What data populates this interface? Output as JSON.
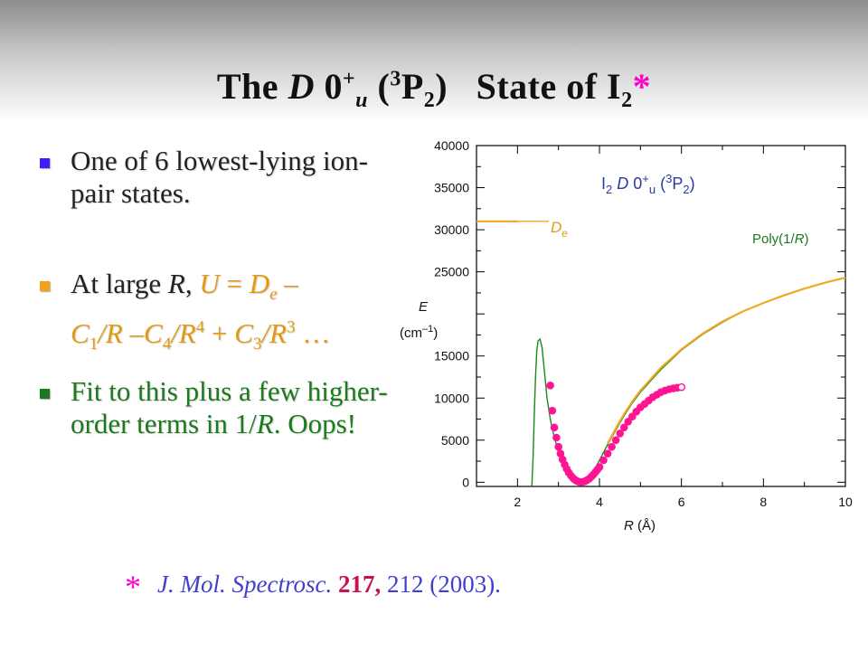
{
  "slide": {
    "title": {
      "pre": "The ",
      "d": "D",
      "mid": " 0",
      "sup_plus": "+",
      "sub_u": "u",
      "paren_open": " (",
      "sup_3": "3",
      "p": "P",
      "sub_2": "2",
      "paren_close": ")",
      "state_of": "   State of I",
      "sub_i2": "2",
      "star": "*"
    },
    "bullets": [
      {
        "text": "One of 6 lowest-lying ion-pair states.",
        "color": "#222222",
        "marker_color": "#3b1cff"
      },
      {
        "color": "#222222",
        "marker_color": "#f4a11a",
        "at_large": "At large ",
        "r": "R",
        "comma": ", ",
        "u": "U",
        "eq": " = ",
        "d": "D",
        "sub_e": "e",
        "minus": " –",
        "c1": "C",
        "sub_1": "1",
        "slash_r1": "/R",
        "minus2": " –",
        "c4": "C",
        "sub_4": "4",
        "slash_r4": "/R",
        "sup_4": "4",
        "plus": " + ",
        "c3": "C",
        "sub_3": "3",
        "slash_r3": "/R",
        "sup_3": "3",
        "ellipsis": " …"
      },
      {
        "color": "#1b7a1b",
        "marker_color": "#1b7a1b",
        "pre": "Fit to this plus a few higher-order terms in 1/",
        "r": "R",
        "post": ".  Oops!"
      }
    ],
    "reference": {
      "star": "*",
      "journal": "J. Mol. Spectrosc.",
      "volume": "217,",
      "pages_year": " 212 (2003)."
    }
  },
  "chart_data": {
    "type": "line",
    "title": "I2 D 0+u (3P2)",
    "xlabel": "R (Å)",
    "ylabel": "E (cm−1)",
    "xlim": [
      1.0,
      10.0
    ],
    "ylim": [
      -500,
      40000
    ],
    "xticks": [
      2,
      4,
      6,
      8,
      10
    ],
    "yticks": [
      0,
      5000,
      10000,
      15000,
      25000,
      30000,
      35000,
      40000
    ],
    "series": [
      {
        "name": "Poly(1/R)",
        "color": "#1a8a1a",
        "x": [
          2.35,
          2.38,
          2.41,
          2.44,
          2.47,
          2.5,
          2.55,
          2.6,
          2.66,
          2.72,
          2.8,
          2.9,
          3.0,
          3.1,
          3.2,
          3.3,
          3.4,
          3.5,
          3.6,
          3.7,
          3.8,
          3.9,
          4.0,
          4.2,
          4.4,
          4.6,
          4.8,
          5.0,
          5.5,
          6.0,
          6.5,
          7.0,
          7.5,
          8.0,
          8.5,
          9.0,
          9.5,
          10.0
        ],
        "y": [
          -500,
          3000,
          8000,
          12500,
          15500,
          16800,
          17000,
          16000,
          13000,
          10000,
          7500,
          5300,
          3600,
          2300,
          1300,
          600,
          200,
          0,
          100,
          400,
          900,
          1700,
          2600,
          4500,
          6200,
          7900,
          9400,
          10700,
          13400,
          15700,
          17500,
          19000,
          20300,
          21300,
          22200,
          23000,
          23700,
          24300
        ]
      },
      {
        "name": "De",
        "color": "#f5a623",
        "x": [
          1.0,
          2.0,
          4.0,
          4.2,
          4.4,
          4.6,
          4.8,
          5.0,
          5.5,
          6.0,
          6.5,
          7.0,
          7.5,
          8.0,
          8.5,
          9.0,
          9.5,
          10.0
        ],
        "y": [
          31000,
          31000,
          null,
          4600,
          6400,
          8100,
          9600,
          10900,
          13600,
          15800,
          17600,
          19100,
          20300,
          21300,
          22200,
          23000,
          23700,
          24300
        ]
      },
      {
        "name": "data",
        "color": "#ff1493",
        "x": [
          2.8,
          2.85,
          2.9,
          2.95,
          3.0,
          3.05,
          3.1,
          3.15,
          3.2,
          3.25,
          3.3,
          3.35,
          3.4,
          3.45,
          3.5,
          3.55,
          3.6,
          3.65,
          3.7,
          3.75,
          3.8,
          3.85,
          3.9,
          3.95,
          4.0,
          4.1,
          4.2,
          4.3,
          4.4,
          4.5,
          4.6,
          4.7,
          4.8,
          4.9,
          5.0,
          5.1,
          5.2,
          5.3,
          5.4,
          5.5,
          5.6,
          5.7,
          5.8,
          5.9,
          6.0
        ],
        "y": [
          11500,
          8500,
          6500,
          5300,
          4200,
          3400,
          2700,
          2100,
          1600,
          1150,
          800,
          520,
          300,
          150,
          60,
          20,
          40,
          120,
          260,
          420,
          650,
          900,
          1200,
          1500,
          1800,
          2600,
          3400,
          4200,
          5000,
          5800,
          6500,
          7200,
          7800,
          8400,
          8900,
          9300,
          9700,
          10100,
          10400,
          10700,
          10900,
          11050,
          11150,
          11230,
          11300
        ]
      }
    ],
    "annotations": {
      "chart_title": {
        "i": "I",
        "sub_2": "2",
        "d": " D",
        "zero": " 0",
        "sup_plus": "+",
        "sub_u": "u",
        "paren_open": " (",
        "sup_3": "3",
        "p": "P",
        "sub_2b": "2",
        "paren_close": ")"
      },
      "de_label": {
        "d": "D",
        "sub_e": "e"
      },
      "poly_label": {
        "pre": "Poly(1/",
        "r": "R",
        "post": ")"
      },
      "xlabel": {
        "r": "R",
        "unit": " (Å)"
      },
      "ylabel": {
        "e": "E",
        "unit_pre": "(cm",
        "unit_sup": "–1",
        "unit_post": ")"
      }
    }
  }
}
